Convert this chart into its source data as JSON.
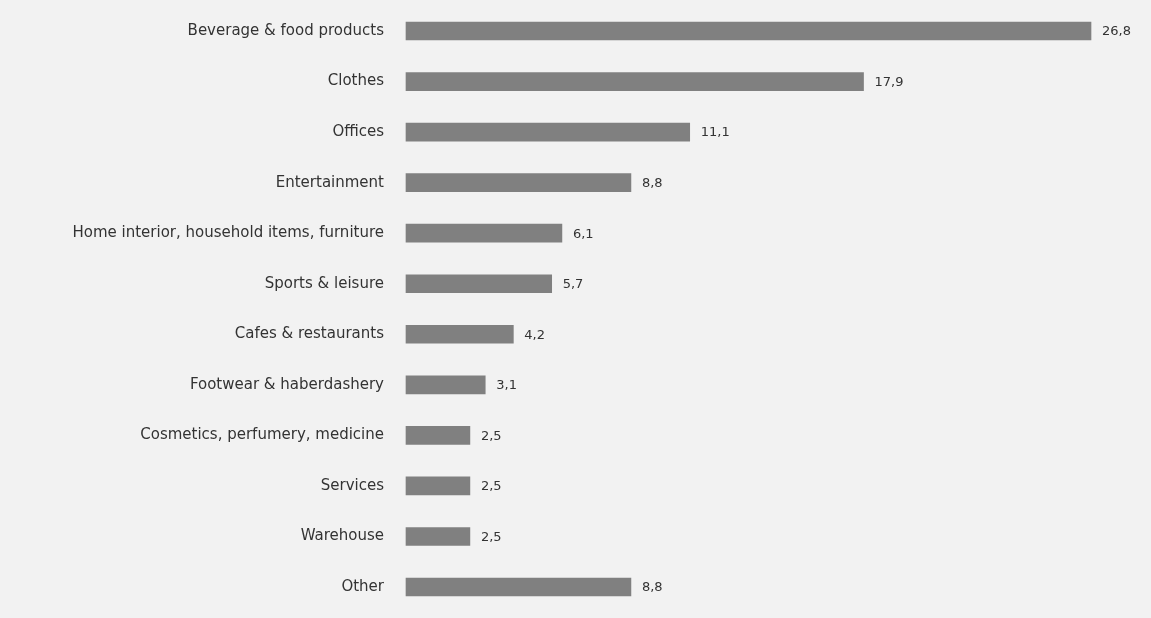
{
  "chart_data": {
    "type": "bar",
    "orientation": "horizontal",
    "categories": [
      "Beverage & food products",
      "Clothes",
      "Offices",
      "Entertainment",
      "Home interior, household items, furniture",
      "Sports & leisure",
      "Cafes & restaurants",
      "Footwear & haberdashery",
      "Cosmetics, perfumery, medicine",
      "Services",
      "Warehouse",
      "Other"
    ],
    "values": [
      26.8,
      17.9,
      11.1,
      8.8,
      6.1,
      5.7,
      4.2,
      3.1,
      2.5,
      2.5,
      2.5,
      8.8
    ],
    "value_labels": [
      "26,8",
      "17,9",
      "11,1",
      "8,8",
      "6,1",
      "5,7",
      "4,2",
      "3,1",
      "2,5",
      "2,5",
      "2,5",
      "8,8"
    ],
    "color": "#808080",
    "grid": false,
    "legend": false,
    "tick_labels": "y"
  }
}
